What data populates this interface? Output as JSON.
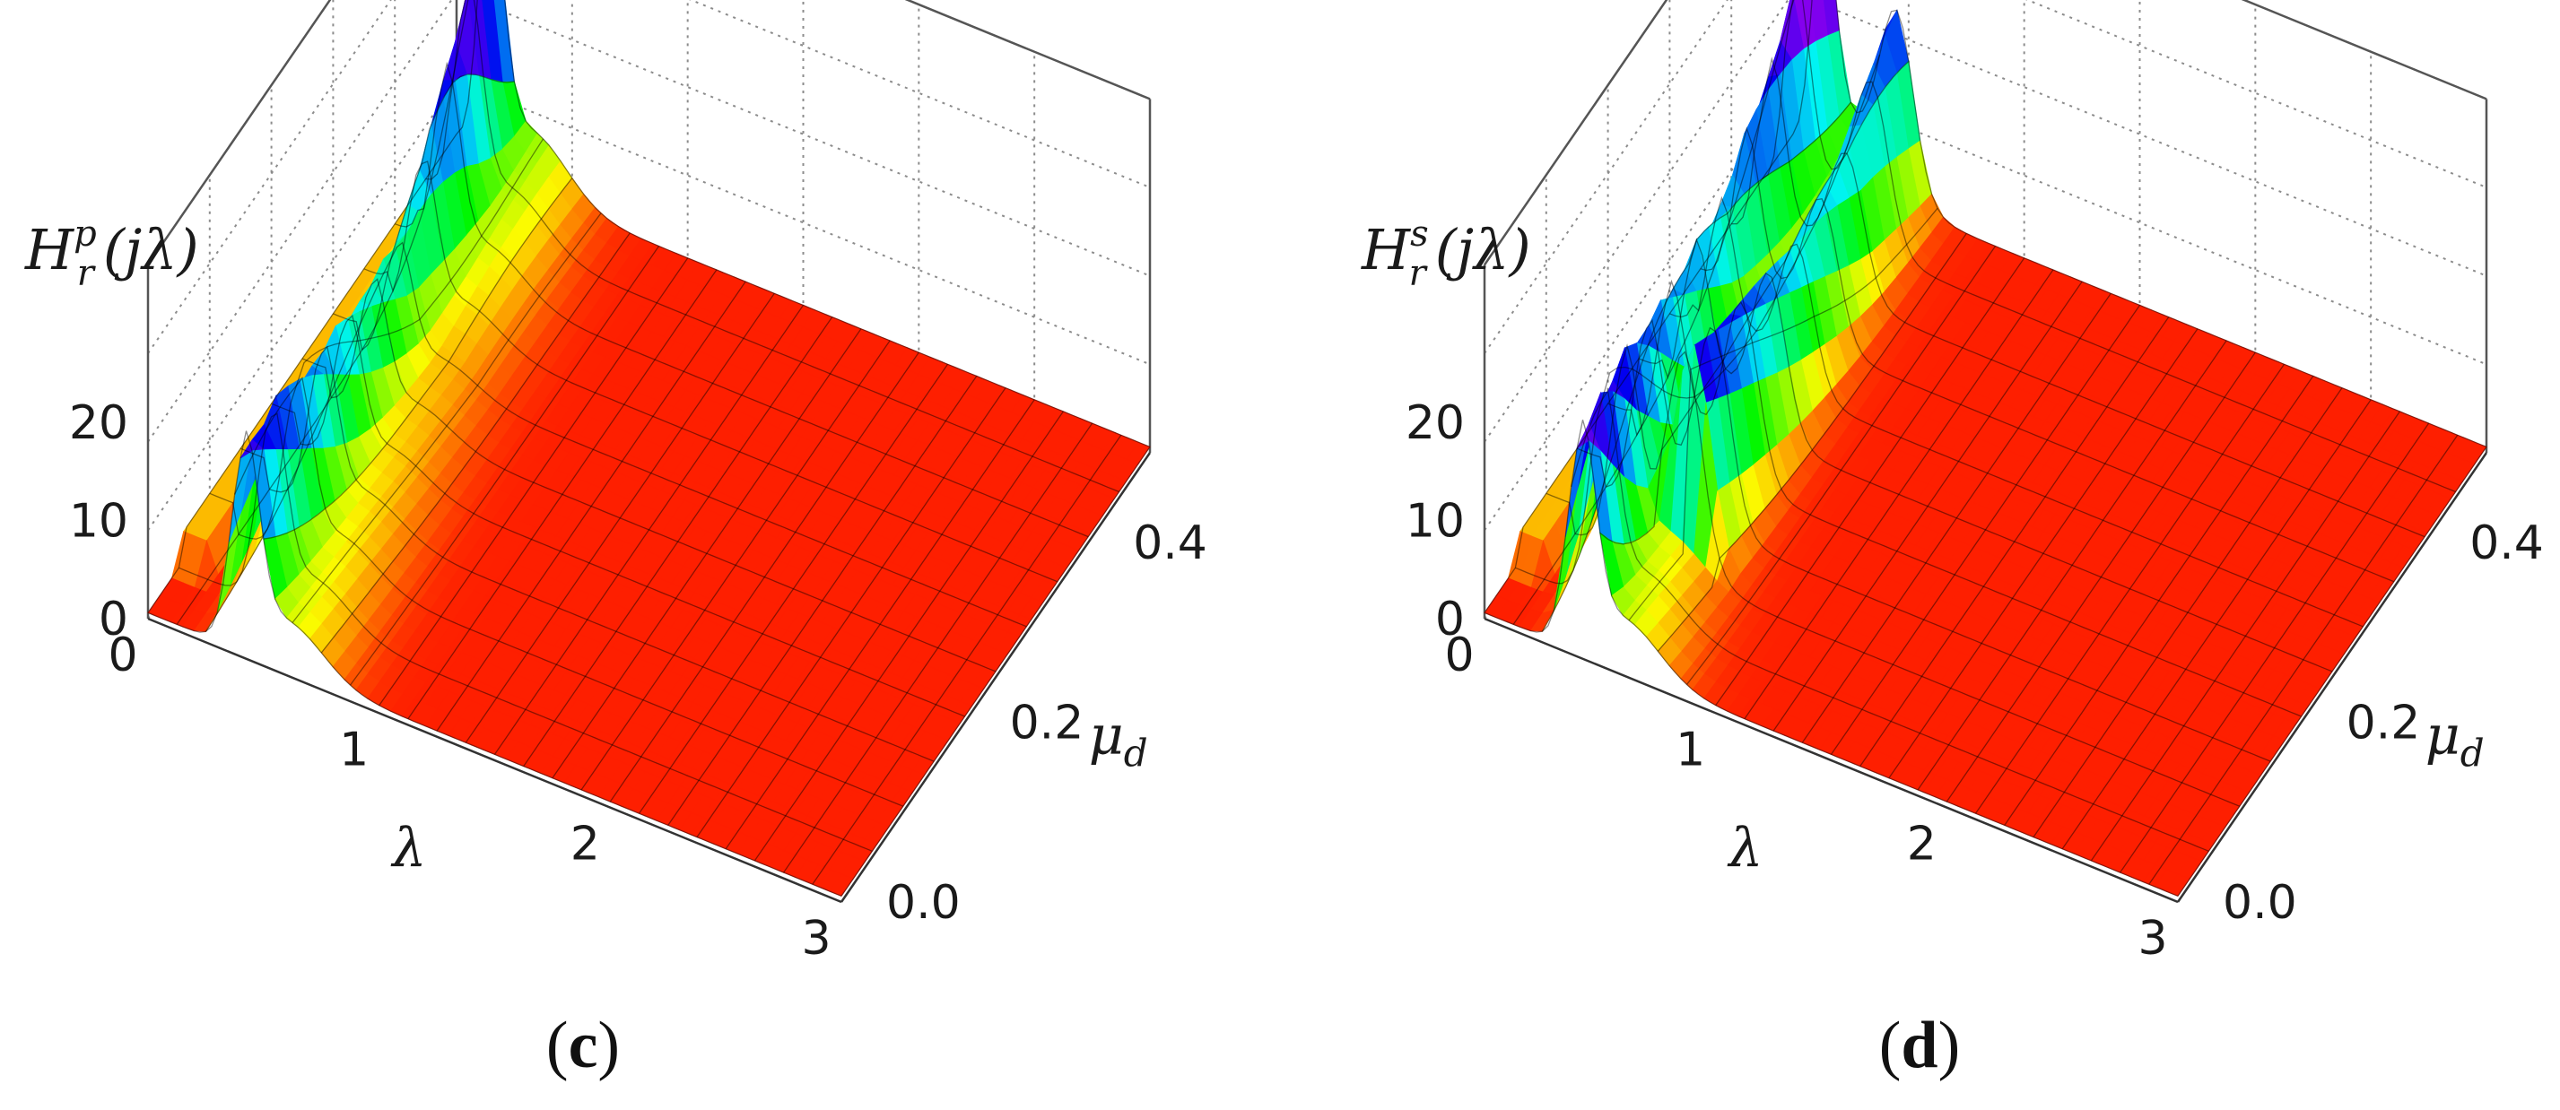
{
  "chart_data": [
    {
      "type": "surface3d",
      "panel_label": "c",
      "zlabel": {
        "base": "H",
        "sup": "p",
        "sub": "r",
        "arg": "(jλ)"
      },
      "xlabel": "λ",
      "ylabel": {
        "base": "μ",
        "sub": "d"
      },
      "xlim": [
        0,
        3
      ],
      "ylim": [
        0,
        0.5
      ],
      "zlim": [
        0,
        26
      ],
      "x_ticks": [
        "0",
        "1",
        "2",
        "3"
      ],
      "y_ticks": [
        "0.0",
        "0.2",
        "0.4"
      ],
      "z_ticks": [
        "0",
        "10",
        "20"
      ],
      "grid": true,
      "colormap": "hue (red low → yellow → green → blue → magenta high)",
      "series": [
        {
          "mu_d": [
            0,
            0.1,
            0.2,
            0.3,
            0.4,
            0.5
          ],
          "peak_lambda": [
            0.42,
            0.38,
            0.33,
            0.28,
            0.22,
            0.14
          ],
          "peak_height": [
            20,
            17,
            14,
            12,
            19,
            26
          ],
          "secondary_peaks": []
        }
      ]
    },
    {
      "type": "surface3d",
      "panel_label": "d",
      "zlabel": {
        "base": "H",
        "sup": "s",
        "sub": "r",
        "arg": "(jλ)"
      },
      "xlabel": "λ",
      "ylabel": {
        "base": "μ",
        "sub": "d"
      },
      "xlim": [
        0,
        3
      ],
      "ylim": [
        0,
        0.5
      ],
      "zlim": [
        0,
        26
      ],
      "x_ticks": [
        "0",
        "1",
        "2",
        "3"
      ],
      "y_ticks": [
        "0.0",
        "0.2",
        "0.4"
      ],
      "z_ticks": [
        "0",
        "10",
        "20"
      ],
      "grid": true,
      "colormap": "hue (red low → yellow → green → blue → magenta high)",
      "series": [
        {
          "mu_d": [
            0,
            0.1,
            0.2,
            0.3,
            0.4,
            0.5
          ],
          "peak_lambda": [
            0.42,
            0.34,
            0.27,
            0.22,
            0.17,
            0.12
          ],
          "peak_height": [
            21,
            19,
            16,
            15,
            19,
            25
          ],
          "secondary_peaks": [
            {
              "mu_d_from": 0.1,
              "peak_lambda": [
                0.6,
                0.58,
                0.55,
                0.5,
                0.45
              ],
              "peak_height": [
                19,
                16,
                13,
                12,
                16
              ]
            }
          ]
        }
      ]
    }
  ]
}
